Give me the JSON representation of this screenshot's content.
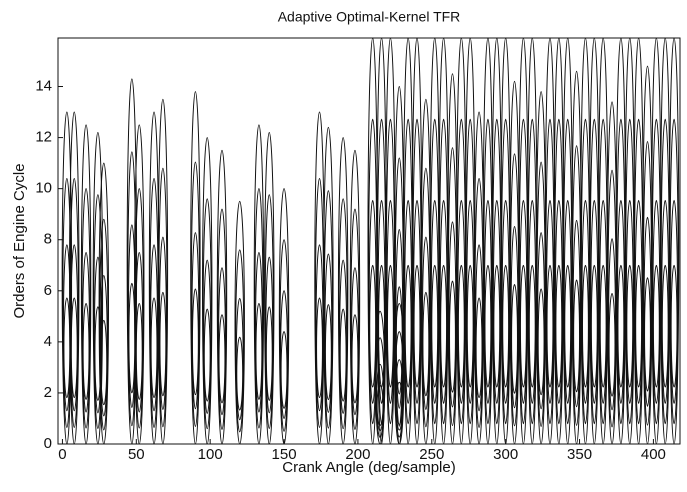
{
  "chart_data": {
    "type": "contour",
    "title": "Adaptive Optimal-Kernel TFR",
    "xlabel": "Crank Angle (deg/sample)",
    "ylabel": "Orders of Engine Cycle",
    "xlim": [
      -3,
      418
    ],
    "ylim": [
      0,
      15.9
    ],
    "xticks": [
      0,
      50,
      100,
      150,
      200,
      250,
      300,
      350,
      400
    ],
    "yticks": [
      0,
      2,
      4,
      6,
      8,
      10,
      12,
      14
    ],
    "color": "#111111",
    "bursts": {
      "x": [
        3,
        8,
        16,
        24,
        28,
        47,
        52,
        62,
        68,
        90,
        98,
        108,
        120,
        133,
        140,
        150,
        174,
        180,
        190,
        198,
        215,
        228,
        210,
        216,
        222,
        228,
        234,
        240,
        246,
        252,
        258,
        264,
        270,
        276,
        282,
        288,
        294,
        300,
        306,
        312,
        318,
        324,
        330,
        336,
        342,
        348,
        354,
        360,
        366,
        372,
        378,
        384,
        390,
        396,
        402,
        408,
        414
      ],
      "top": [
        13,
        13,
        12.5,
        12.2,
        11,
        14.3,
        12.5,
        13,
        13.5,
        13.8,
        12,
        11.5,
        9.5,
        12.5,
        12.2,
        10,
        13,
        12.4,
        12,
        11.5,
        5.2,
        5.5,
        15.9,
        15.9,
        15.9,
        14,
        15.9,
        15.9,
        13.5,
        15.9,
        15.9,
        14.5,
        15.9,
        15.9,
        13,
        15.9,
        15.9,
        15.9,
        14.2,
        15.9,
        15.9,
        13.8,
        15.9,
        15.9,
        15.9,
        14.6,
        15.9,
        15.9,
        15.9,
        13.4,
        15.9,
        15.9,
        15.9,
        14.8,
        15.9,
        15.9,
        15.9
      ]
    }
  }
}
